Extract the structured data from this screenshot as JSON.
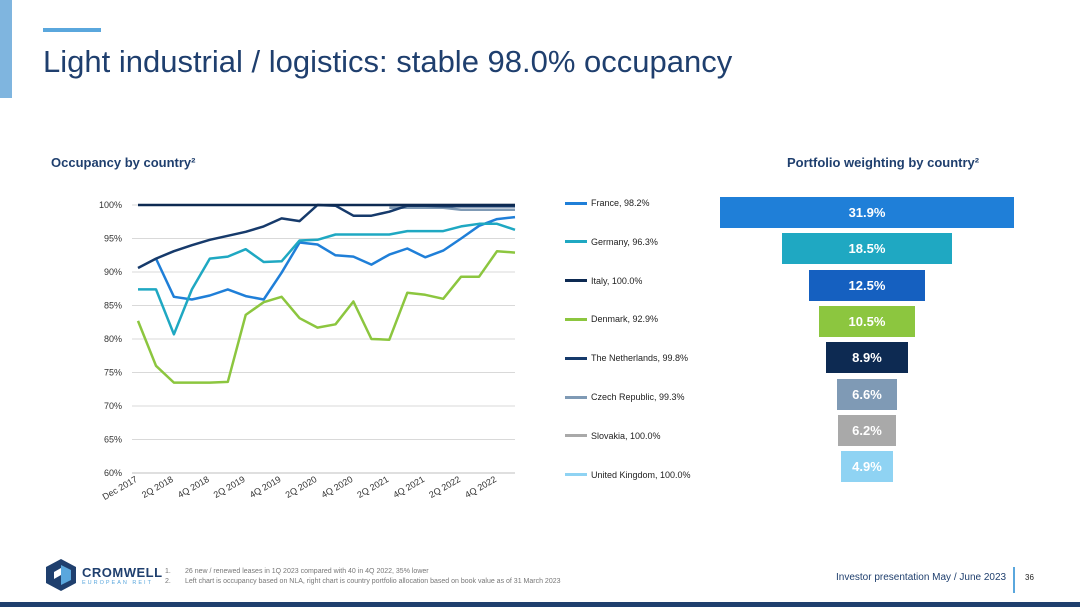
{
  "slide": {
    "title": "Light industrial / logistics: stable 98.0% occupancy",
    "page_number": "36",
    "footer_right": "Investor presentation May / June 2023",
    "logo": {
      "name": "CROMWELL",
      "sub": "EUROPEAN REIT"
    },
    "footnotes": [
      {
        "num": "1.",
        "text": "26 new / renewed leases in 1Q 2023 compared with 40 in 4Q 2022, 35% lower"
      },
      {
        "num": "2.",
        "text": "Left chart is occupancy based on NLA, right chart is country portfolio allocation based on book value as of 31 March 2023"
      }
    ]
  },
  "chart_data": [
    {
      "type": "line",
      "title": "Occupancy by country²",
      "xlabel": "",
      "ylabel": "",
      "ylim": [
        60,
        100
      ],
      "yticks": [
        "100%",
        "95%",
        "90%",
        "85%",
        "80%",
        "75%",
        "70%",
        "65%",
        "60%"
      ],
      "x": [
        "Dec 2017",
        "1Q 2018",
        "2Q 2018",
        "3Q 2018",
        "4Q 2018",
        "1Q 2019",
        "2Q 2019",
        "3Q 2019",
        "4Q 2019",
        "1Q 2020",
        "2Q 2020",
        "3Q 2020",
        "4Q 2020",
        "1Q 2021",
        "2Q 2021",
        "3Q 2021",
        "4Q 2021",
        "1Q 2022",
        "2Q 2022",
        "3Q 2022",
        "4Q 2022",
        "1Q 2023"
      ],
      "xtick_labels": [
        "Dec 2017",
        "",
        "2Q 2018",
        "",
        "4Q 2018",
        "",
        "2Q 2019",
        "",
        "4Q 2019",
        "",
        "2Q 2020",
        "",
        "4Q 2020",
        "",
        "2Q 2021",
        "",
        "4Q 2021",
        "",
        "2Q 2022",
        "",
        "4Q 2022",
        ""
      ],
      "grid": true,
      "legend": "right",
      "series": [
        {
          "name": "France, 98.2%",
          "color": "#1f7fd8",
          "values": [
            null,
            92.0,
            86.3,
            85.9,
            86.5,
            87.4,
            86.4,
            85.9,
            89.9,
            94.4,
            94.1,
            92.5,
            92.3,
            91.1,
            92.6,
            93.5,
            92.2,
            93.2,
            95.0,
            96.9,
            97.9,
            98.2
          ]
        },
        {
          "name": "Germany, 96.3%",
          "color": "#1fa8c2",
          "values": [
            87.4,
            87.4,
            80.7,
            87.4,
            92.0,
            92.3,
            93.4,
            91.5,
            91.6,
            94.7,
            94.8,
            95.6,
            95.6,
            95.6,
            95.6,
            96.1,
            96.1,
            96.1,
            96.8,
            97.2,
            97.2,
            96.3
          ]
        },
        {
          "name": "Italy, 100.0%",
          "color": "#0d2a52",
          "values": [
            100,
            100,
            100,
            100,
            100,
            100,
            100,
            100,
            100,
            100,
            100,
            100,
            100,
            100,
            100,
            100,
            100,
            100,
            100,
            100,
            100,
            100
          ]
        },
        {
          "name": "Denmark, 92.9%",
          "color": "#8cc63f",
          "values": [
            82.7,
            76.0,
            73.5,
            73.5,
            73.5,
            73.6,
            83.6,
            85.5,
            86.3,
            83.1,
            81.7,
            82.2,
            85.6,
            80.0,
            79.9,
            86.9,
            86.6,
            86.0,
            89.3,
            89.3,
            93.1,
            92.9
          ]
        },
        {
          "name": "The Netherlands, 99.8%",
          "color": "#163a6b",
          "values": [
            90.6,
            92.0,
            93.1,
            94.0,
            94.8,
            95.4,
            96.0,
            96.8,
            98.0,
            97.6,
            100,
            99.9,
            98.4,
            98.4,
            99.0,
            99.9,
            99.9,
            99.8,
            99.8,
            99.8,
            99.8,
            99.8
          ]
        },
        {
          "name": "Czech Republic, 99.3%",
          "color": "#7f9ab5",
          "values": [
            null,
            null,
            null,
            null,
            null,
            null,
            null,
            null,
            null,
            null,
            null,
            null,
            null,
            null,
            99.6,
            99.6,
            99.6,
            99.6,
            99.3,
            99.3,
            99.3,
            99.3
          ]
        },
        {
          "name": "Slovakia, 100.0%",
          "color": "#a9a9a9",
          "values": [
            null,
            null,
            null,
            null,
            null,
            null,
            null,
            null,
            null,
            null,
            null,
            null,
            null,
            null,
            100,
            100,
            100,
            100,
            100,
            100,
            100,
            100
          ]
        },
        {
          "name": "United Kingdom, 100.0%",
          "color": "#8fd3f3",
          "values": [
            null,
            null,
            null,
            null,
            null,
            null,
            null,
            null,
            null,
            null,
            null,
            null,
            null,
            null,
            null,
            null,
            null,
            null,
            null,
            null,
            null,
            100
          ]
        }
      ]
    },
    {
      "type": "bar",
      "orientation": "horizontal-centered",
      "title": "Portfolio weighting by country²",
      "categories": [
        "France",
        "Germany",
        "Italy",
        "Denmark",
        "The Netherlands",
        "Czech Republic",
        "Slovakia",
        "United Kingdom"
      ],
      "values": [
        31.9,
        18.5,
        12.5,
        10.5,
        8.9,
        6.6,
        6.2,
        4.9
      ],
      "labels": [
        "31.9%",
        "18.5%",
        "12.5%",
        "10.5%",
        "8.9%",
        "6.6%",
        "6.2%",
        "4.9%"
      ],
      "colors": [
        "#1f7fd8",
        "#1fa8c2",
        "#1560c0",
        "#8cc63f",
        "#0d2a52",
        "#7f9ab5",
        "#a9a9a9",
        "#8fd3f3"
      ]
    }
  ]
}
